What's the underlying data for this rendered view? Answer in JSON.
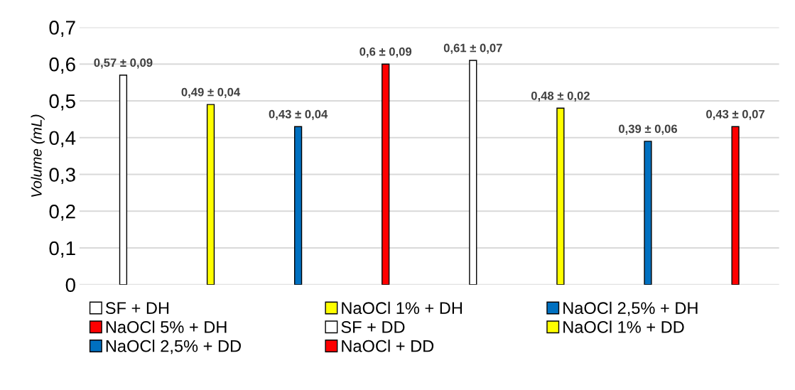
{
  "chart_data": {
    "type": "bar",
    "ylabel": "Volume (mL)",
    "categories": [
      null,
      null,
      null,
      null,
      null,
      null,
      null,
      null
    ],
    "series": [
      {
        "name": "SF + DH",
        "color": "#ffffff",
        "values": [
          0.57,
          null,
          null,
          null,
          null,
          null,
          null,
          null
        ],
        "value_labels": [
          "0,57 ± 0,09",
          null,
          null,
          null,
          null,
          null,
          null,
          null
        ]
      },
      {
        "name": "NaOCl 1% + DH",
        "color": "#ffff00",
        "values": [
          null,
          0.49,
          null,
          null,
          null,
          null,
          null,
          null
        ],
        "value_labels": [
          null,
          "0,49 ± 0,04",
          null,
          null,
          null,
          null,
          null,
          null
        ]
      },
      {
        "name": "NaOCl 2,5% + DH",
        "color": "#0070c0",
        "values": [
          null,
          null,
          0.43,
          null,
          null,
          null,
          null,
          null
        ],
        "value_labels": [
          null,
          null,
          "0,43 ± 0,04",
          null,
          null,
          null,
          null,
          null
        ]
      },
      {
        "name": "NaOCl 5% + DH",
        "color": "#ff0000",
        "values": [
          null,
          null,
          null,
          0.6,
          null,
          null,
          null,
          null
        ],
        "value_labels": [
          null,
          null,
          null,
          "0,6 ± 0,09",
          null,
          null,
          null,
          null
        ]
      },
      {
        "name": "SF + DD",
        "color": "#ffffff",
        "values": [
          null,
          null,
          null,
          null,
          0.61,
          null,
          null,
          null
        ],
        "value_labels": [
          null,
          null,
          null,
          null,
          "0,61 ± 0,07",
          null,
          null,
          null
        ]
      },
      {
        "name": "NaOCl 1% + DD",
        "color": "#ffff00",
        "values": [
          null,
          null,
          null,
          null,
          null,
          0.48,
          null,
          null
        ],
        "value_labels": [
          null,
          null,
          null,
          null,
          null,
          "0,48 ± 0,02",
          null,
          null
        ]
      },
      {
        "name": "NaOCl 2,5% + DD",
        "color": "#0070c0",
        "values": [
          null,
          null,
          null,
          null,
          null,
          null,
          0.39,
          null
        ],
        "value_labels": [
          null,
          null,
          null,
          null,
          null,
          null,
          "0,39 ± 0,06",
          null
        ]
      },
      {
        "name": "NaOCl + DD",
        "color": "#ff0000",
        "values": [
          null,
          null,
          null,
          null,
          null,
          null,
          null,
          0.43
        ],
        "value_labels": [
          null,
          null,
          null,
          null,
          null,
          null,
          null,
          "0,43 ± 0,07"
        ]
      }
    ],
    "ylim": [
      0,
      0.7
    ],
    "yticks": [
      0,
      {
        "value": 0.1,
        "label": "0,1"
      },
      {
        "value": 0.2,
        "label": "0,2"
      },
      {
        "value": 0.3,
        "label": "0,3"
      },
      {
        "value": 0.4,
        "label": "0,4"
      },
      {
        "value": 0.5,
        "label": "0,5"
      },
      {
        "value": 0.6,
        "label": "0,6"
      },
      {
        "value": 0.7,
        "label": "0,7"
      }
    ],
    "grid": "y",
    "legend": "bottom"
  }
}
